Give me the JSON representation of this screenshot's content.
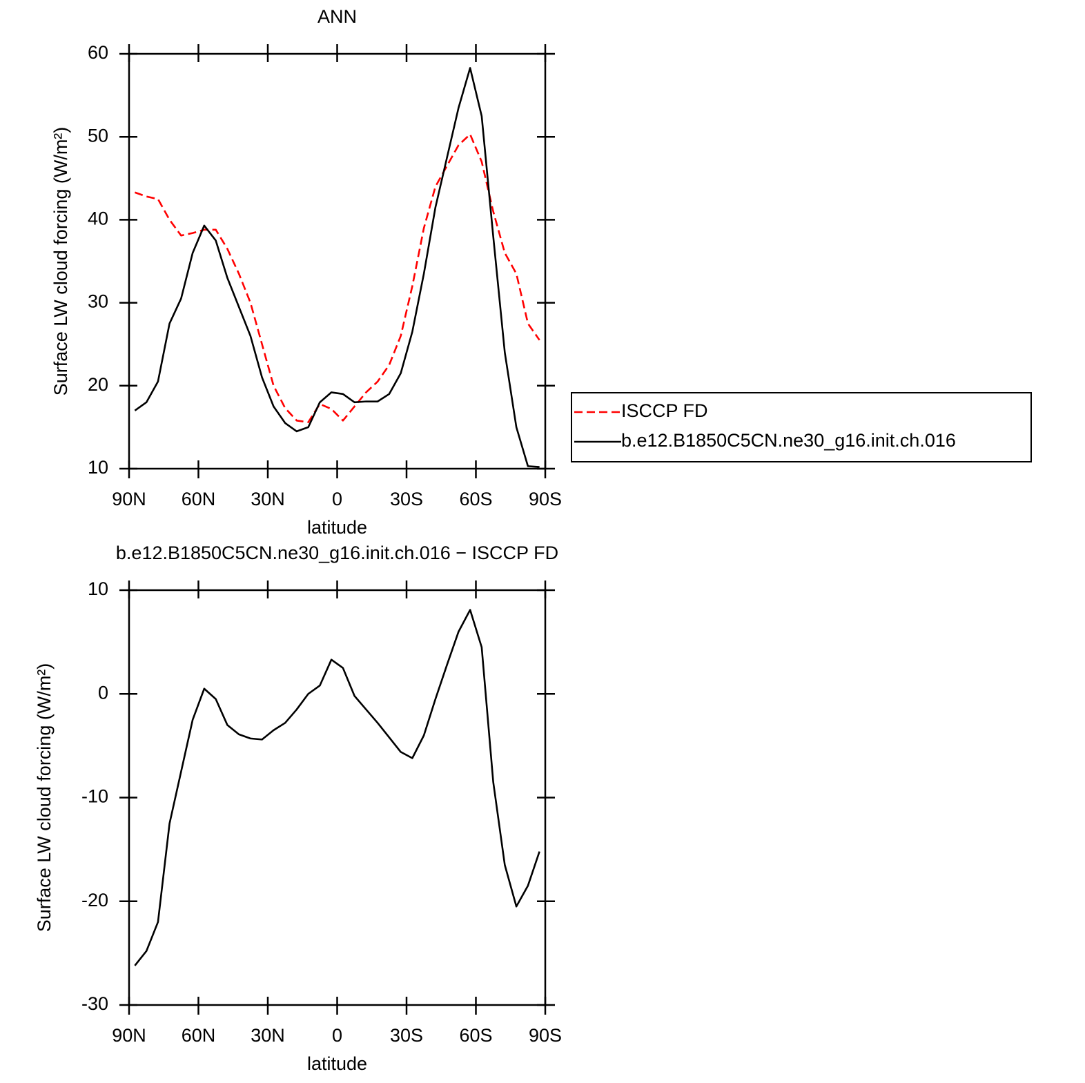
{
  "chart_data": [
    {
      "type": "line",
      "title": "ANN",
      "xlabel": "latitude",
      "ylabel": "Surface LW cloud forcing (W/m²)",
      "x": [
        87.5,
        82.5,
        77.5,
        72.5,
        67.5,
        62.5,
        57.5,
        52.5,
        47.5,
        42.5,
        37.5,
        32.5,
        27.5,
        22.5,
        17.5,
        12.5,
        7.5,
        2.5,
        -2.5,
        -7.5,
        -12.5,
        -17.5,
        -22.5,
        -27.5,
        -32.5,
        -37.5,
        -42.5,
        -47.5,
        -52.5,
        -57.5,
        -62.5,
        -67.5,
        -72.5,
        -77.5,
        -82.5,
        -87.5
      ],
      "series": [
        {
          "name": "ISCCP FD",
          "color": "#ff0000",
          "dashed": true,
          "values": [
            43.3,
            42.8,
            42.5,
            40,
            38.1,
            38.4,
            38.8,
            38.8,
            36.5,
            33.5,
            30,
            25,
            20,
            17.3,
            15.8,
            15.6,
            17.8,
            17.2,
            15.8,
            17.5,
            19.2,
            20.5,
            22.5,
            26,
            32,
            39,
            44,
            46.5,
            49,
            50.3,
            47,
            41,
            36,
            33.5,
            27.5,
            25.5
          ]
        },
        {
          "name": "b.e12.B1850C5CN.ne30_g16.init.ch.016",
          "color": "#000000",
          "dashed": false,
          "values": [
            17.0,
            18.0,
            20.5,
            27.5,
            30.5,
            36,
            39.3,
            37.5,
            33,
            29.5,
            26,
            21,
            17.5,
            15.5,
            14.5,
            15.0,
            18.0,
            19.2,
            19.0,
            18.0,
            18.1,
            18.1,
            19,
            21.5,
            26.5,
            33.5,
            41.5,
            47.5,
            53.5,
            58.3,
            52.5,
            38,
            24,
            15,
            10.3,
            10.2
          ]
        }
      ],
      "xlim": [
        90,
        -90
      ],
      "xticks": [
        {
          "value": 90,
          "label": "90N"
        },
        {
          "value": 60,
          "label": "60N"
        },
        {
          "value": 30,
          "label": "30N"
        },
        0,
        {
          "value": -30,
          "label": "30S"
        },
        {
          "value": -60,
          "label": "60S"
        },
        {
          "value": -90,
          "label": "90S"
        }
      ],
      "ylim": [
        10,
        60
      ],
      "yticks": [
        10,
        20,
        30,
        40,
        50,
        60
      ],
      "legend": "right"
    },
    {
      "type": "line",
      "title": "b.e12.B1850C5CN.ne30_g16.init.ch.016 − ISCCP FD",
      "xlabel": "latitude",
      "ylabel": "Surface LW cloud forcing (W/m²)",
      "x": [
        87.5,
        82.5,
        77.5,
        72.5,
        67.5,
        62.5,
        57.5,
        52.5,
        47.5,
        42.5,
        37.5,
        32.5,
        27.5,
        22.5,
        17.5,
        12.5,
        7.5,
        2.5,
        -2.5,
        -7.5,
        -12.5,
        -17.5,
        -22.5,
        -27.5,
        -32.5,
        -37.5,
        -42.5,
        -47.5,
        -52.5,
        -57.5,
        -62.5,
        -67.5,
        -72.5,
        -77.5,
        -82.5,
        -87.5
      ],
      "series": [
        {
          "color": "#000000",
          "dashed": false,
          "values": [
            -26.2,
            -24.8,
            -22,
            -12.5,
            -7.5,
            -2.5,
            0.5,
            -0.5,
            -3,
            -3.9,
            -4.3,
            -4.4,
            -3.5,
            -2.8,
            -1.5,
            0,
            0.8,
            3.3,
            2.5,
            -0.2,
            -1.5,
            -2.8,
            -4.2,
            -5.6,
            -6.2,
            -4,
            -0.5,
            2.8,
            6,
            8.1,
            4.5,
            -8.5,
            -16.5,
            -20.5,
            -18.5,
            -15.2
          ]
        }
      ],
      "xlim": [
        90,
        -90
      ],
      "xticks": [
        {
          "value": 90,
          "label": "90N"
        },
        {
          "value": 60,
          "label": "60N"
        },
        {
          "value": 30,
          "label": "30N"
        },
        0,
        {
          "value": -30,
          "label": "30S"
        },
        {
          "value": -60,
          "label": "60S"
        },
        {
          "value": -90,
          "label": "90S"
        }
      ],
      "ylim": [
        -30,
        10
      ],
      "yticks": [
        -30,
        -20,
        -10,
        0,
        10
      ]
    }
  ]
}
